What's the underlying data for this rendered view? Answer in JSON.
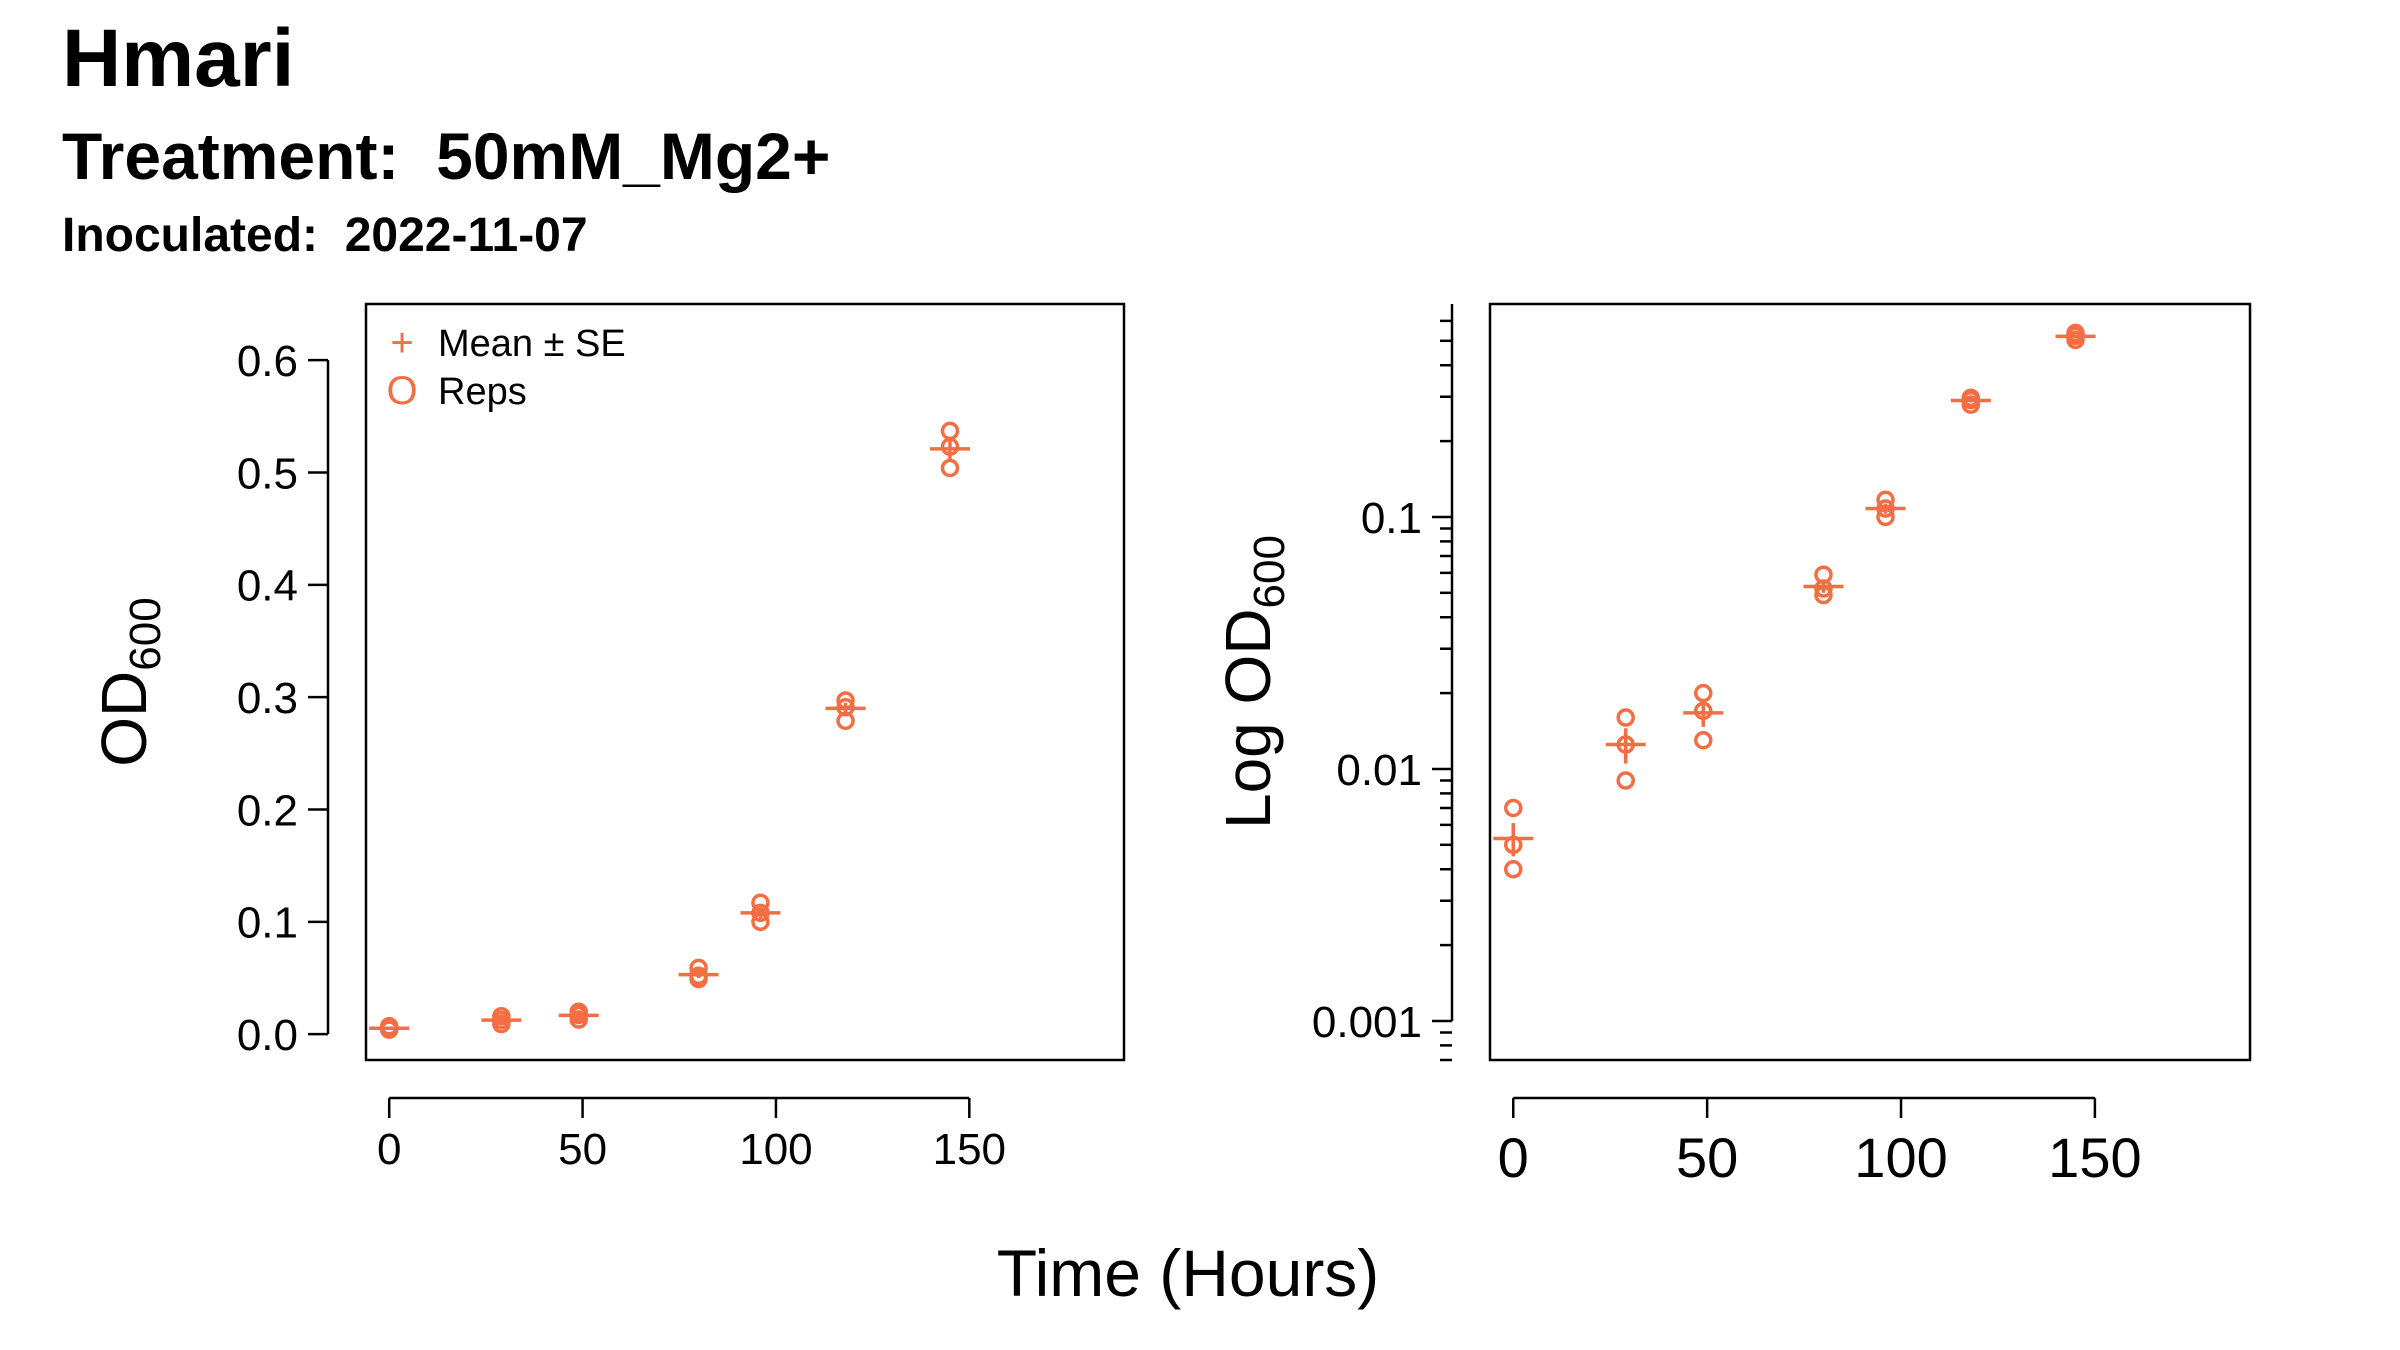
{
  "header": {
    "strain": "Hmari",
    "treatment_label": "Treatment:",
    "treatment": "50mM_Mg2+",
    "inoculated_label": "Inoculated:",
    "inoculated": "2022-11-07"
  },
  "colors": {
    "series": "#F46D43",
    "axis": "#000000"
  },
  "chart_data": [
    {
      "type": "scatter",
      "scale": "linear",
      "ylabel": "OD",
      "ylabel_sub": "600",
      "xlabel": "Time (Hours)",
      "xlim": [
        -6,
        190
      ],
      "ylim": [
        -0.023,
        0.65
      ],
      "xticks": [
        0,
        50,
        100,
        150
      ],
      "xtick_labels": [
        "0",
        "50",
        "100",
        "150"
      ],
      "yticks": [
        0,
        0.1,
        0.2,
        0.3,
        0.4,
        0.5,
        0.6
      ],
      "ytick_labels": [
        "0.0",
        "0.1",
        "0.2",
        "0.3",
        "0.4",
        "0.5",
        "0.6"
      ],
      "legend": {
        "position": "top-left",
        "entries": [
          {
            "symbol": "+",
            "label": "Mean ± SE"
          },
          {
            "symbol": "O",
            "label": "Reps"
          }
        ]
      },
      "grid": false
    },
    {
      "type": "scatter",
      "scale": "log",
      "ylabel": "Log OD",
      "ylabel_sub": "600",
      "xlabel": "Time (Hours)",
      "xlim": [
        -6,
        190
      ],
      "ylim": [
        0.0007,
        0.7
      ],
      "xticks": [
        0,
        50,
        100,
        150
      ],
      "xtick_labels": [
        "0",
        "50",
        "100",
        "150"
      ],
      "yticks": [
        0.001,
        0.01,
        0.1
      ],
      "ytick_labels": [
        "0.001",
        "0.01",
        "0.1"
      ],
      "grid": false
    }
  ],
  "series": {
    "name": "Reps",
    "points": [
      {
        "time": 0,
        "mean": 0.0053,
        "se": 0.0008,
        "reps": [
          0.004,
          0.005,
          0.007
        ]
      },
      {
        "time": 29,
        "mean": 0.0125,
        "se": 0.002,
        "reps": [
          0.009,
          0.0125,
          0.016
        ]
      },
      {
        "time": 49,
        "mean": 0.0167,
        "se": 0.002,
        "reps": [
          0.013,
          0.017,
          0.02
        ]
      },
      {
        "time": 80,
        "mean": 0.053,
        "se": 0.003,
        "reps": [
          0.049,
          0.052,
          0.059
        ]
      },
      {
        "time": 96,
        "mean": 0.108,
        "se": 0.005,
        "reps": [
          0.1,
          0.108,
          0.117
        ]
      },
      {
        "time": 118,
        "mean": 0.29,
        "se": 0.005,
        "reps": [
          0.279,
          0.291,
          0.297
        ]
      },
      {
        "time": 145,
        "mean": 0.521,
        "se": 0.009,
        "reps": [
          0.504,
          0.523,
          0.537
        ]
      }
    ]
  }
}
